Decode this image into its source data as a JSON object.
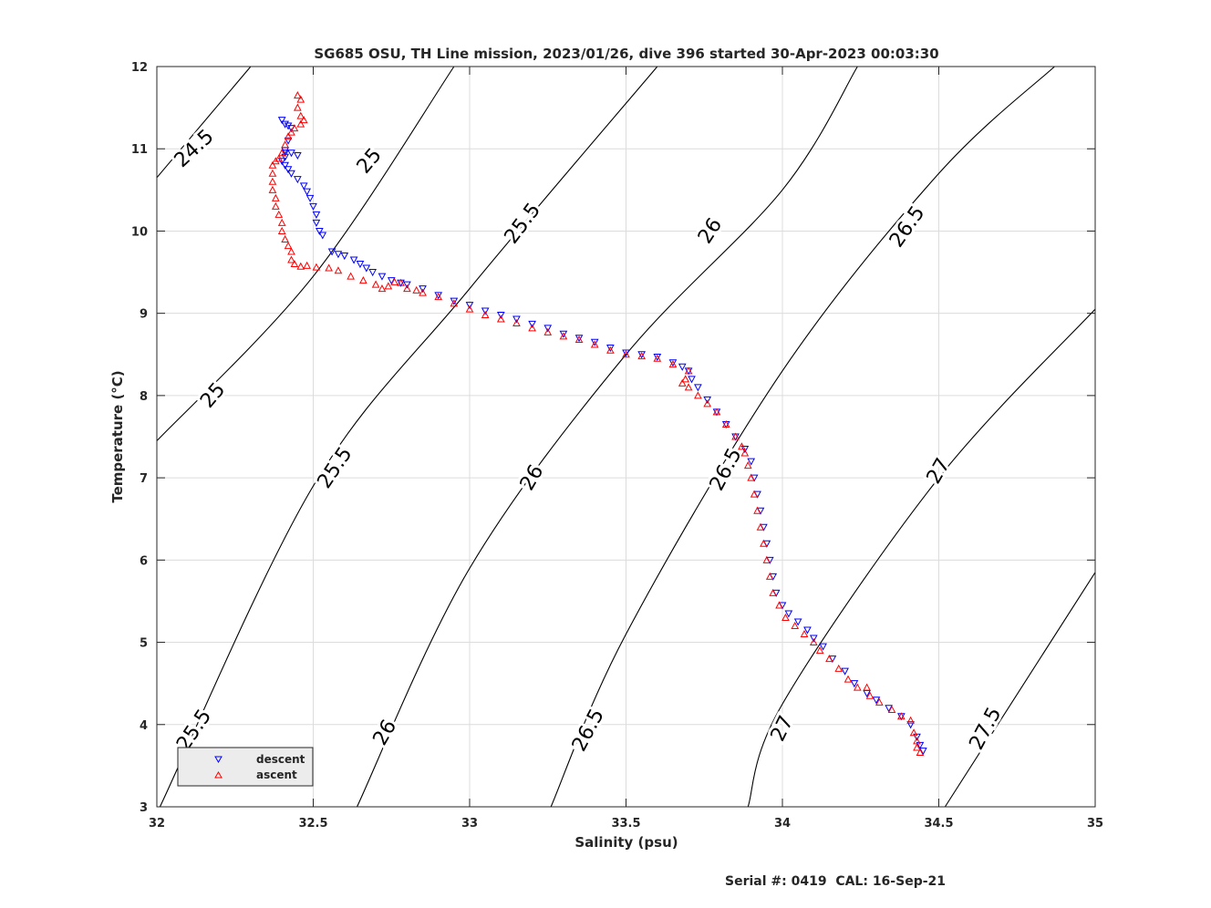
{
  "chart_data": {
    "type": "scatter",
    "title": "SG685 OSU, TH Line mission, 2023/01/26, dive 396 started 30-Apr-2023 00:03:30",
    "xlabel": "Salinity (psu)",
    "ylabel": "Temperature (°C)",
    "xlim": [
      32,
      35
    ],
    "ylim": [
      3,
      12
    ],
    "xticks": [
      32,
      32.5,
      33,
      33.5,
      34,
      34.5,
      35
    ],
    "yticks": [
      3,
      4,
      5,
      6,
      7,
      8,
      9,
      10,
      11,
      12
    ],
    "xtick_labels": [
      "32",
      "32.5",
      "33",
      "33.5",
      "34",
      "34.5",
      "35"
    ],
    "ytick_labels": [
      "3",
      "4",
      "5",
      "6",
      "7",
      "8",
      "9",
      "10",
      "11",
      "12"
    ],
    "grid": true,
    "legend_position": "bottom-left",
    "footer": "Serial #: 0419  CAL: 16-Sep-21",
    "contour_lines": [
      {
        "sigma": 24.5,
        "points": [
          [
            32.0,
            10.65
          ],
          [
            32.3,
            12.0
          ]
        ]
      },
      {
        "sigma": 25.0,
        "points": [
          [
            32.0,
            7.45
          ],
          [
            32.5,
            9.45
          ],
          [
            32.95,
            12.0
          ]
        ]
      },
      {
        "sigma": 25.5,
        "points": [
          [
            32.01,
            3.0
          ],
          [
            32.5,
            6.9
          ],
          [
            33.0,
            9.3
          ],
          [
            33.6,
            12.0
          ]
        ]
      },
      {
        "sigma": 26.0,
        "points": [
          [
            32.64,
            3.0
          ],
          [
            33.0,
            5.9
          ],
          [
            33.5,
            8.5
          ],
          [
            34.0,
            10.5
          ],
          [
            34.24,
            12.0
          ]
        ]
      },
      {
        "sigma": 26.5,
        "points": [
          [
            33.26,
            3.0
          ],
          [
            33.5,
            5.1
          ],
          [
            34.0,
            8.3
          ],
          [
            34.5,
            10.7
          ],
          [
            34.87,
            12.0
          ]
        ]
      },
      {
        "sigma": 27.0,
        "points": [
          [
            33.89,
            3.0
          ],
          [
            34.0,
            4.25
          ],
          [
            34.5,
            7.0
          ],
          [
            35.0,
            9.05
          ]
        ]
      },
      {
        "sigma": 27.5,
        "points": [
          [
            34.52,
            3.0
          ],
          [
            35.0,
            5.85
          ]
        ]
      }
    ],
    "contour_labels": [
      {
        "text": "24.5",
        "x": 32.12,
        "y": 11.0,
        "angle": -43
      },
      {
        "text": "25",
        "x": 32.18,
        "y": 8.0,
        "angle": -50
      },
      {
        "text": "25.5",
        "x": 32.12,
        "y": 3.93,
        "angle": -56
      },
      {
        "text": "25",
        "x": 32.68,
        "y": 10.85,
        "angle": -50
      },
      {
        "text": "25.5",
        "x": 32.57,
        "y": 7.12,
        "angle": -56
      },
      {
        "text": "26",
        "x": 32.73,
        "y": 3.9,
        "angle": -60
      },
      {
        "text": "25.5",
        "x": 33.17,
        "y": 10.09,
        "angle": -53
      },
      {
        "text": "26",
        "x": 33.2,
        "y": 7.0,
        "angle": -60
      },
      {
        "text": "26.5",
        "x": 33.38,
        "y": 3.93,
        "angle": -62
      },
      {
        "text": "26",
        "x": 33.77,
        "y": 10.0,
        "angle": -57
      },
      {
        "text": "26.5",
        "x": 33.82,
        "y": 7.1,
        "angle": -62
      },
      {
        "text": "27",
        "x": 34.0,
        "y": 3.95,
        "angle": -64
      },
      {
        "text": "26.5",
        "x": 34.4,
        "y": 10.05,
        "angle": -55
      },
      {
        "text": "27",
        "x": 34.5,
        "y": 7.08,
        "angle": -60
      },
      {
        "text": "27.5",
        "x": 34.65,
        "y": 3.95,
        "angle": -62
      }
    ],
    "series": [
      {
        "name": "descent",
        "color": "#0000ff",
        "marker": "triangle-down",
        "points": [
          [
            32.4,
            11.35
          ],
          [
            32.41,
            11.3
          ],
          [
            32.42,
            11.28
          ],
          [
            32.43,
            11.25
          ],
          [
            32.42,
            11.1
          ],
          [
            32.41,
            10.98
          ],
          [
            32.41,
            10.95
          ],
          [
            32.43,
            10.95
          ],
          [
            32.45,
            10.92
          ],
          [
            32.41,
            10.9
          ],
          [
            32.4,
            10.85
          ],
          [
            32.41,
            10.8
          ],
          [
            32.42,
            10.75
          ],
          [
            32.43,
            10.7
          ],
          [
            32.45,
            10.63
          ],
          [
            32.47,
            10.55
          ],
          [
            32.48,
            10.48
          ],
          [
            32.49,
            10.4
          ],
          [
            32.5,
            10.3
          ],
          [
            32.51,
            10.2
          ],
          [
            32.51,
            10.1
          ],
          [
            32.52,
            10.0
          ],
          [
            32.53,
            9.95
          ],
          [
            32.56,
            9.75
          ],
          [
            32.58,
            9.72
          ],
          [
            32.6,
            9.7
          ],
          [
            32.63,
            9.65
          ],
          [
            32.65,
            9.6
          ],
          [
            32.67,
            9.55
          ],
          [
            32.69,
            9.5
          ],
          [
            32.72,
            9.45
          ],
          [
            32.75,
            9.4
          ],
          [
            32.78,
            9.37
          ],
          [
            32.8,
            9.35
          ],
          [
            32.85,
            9.3
          ],
          [
            32.9,
            9.22
          ],
          [
            32.95,
            9.15
          ],
          [
            33.0,
            9.1
          ],
          [
            33.05,
            9.03
          ],
          [
            33.1,
            8.98
          ],
          [
            33.15,
            8.93
          ],
          [
            33.2,
            8.87
          ],
          [
            33.25,
            8.82
          ],
          [
            33.3,
            8.75
          ],
          [
            33.35,
            8.7
          ],
          [
            33.4,
            8.65
          ],
          [
            33.45,
            8.58
          ],
          [
            33.5,
            8.52
          ],
          [
            33.55,
            8.5
          ],
          [
            33.6,
            8.47
          ],
          [
            33.65,
            8.4
          ],
          [
            33.68,
            8.35
          ],
          [
            33.7,
            8.3
          ],
          [
            33.71,
            8.2
          ],
          [
            33.73,
            8.1
          ],
          [
            33.76,
            7.95
          ],
          [
            33.79,
            7.8
          ],
          [
            33.82,
            7.65
          ],
          [
            33.85,
            7.5
          ],
          [
            33.88,
            7.35
          ],
          [
            33.9,
            7.2
          ],
          [
            33.91,
            7.0
          ],
          [
            33.92,
            6.8
          ],
          [
            33.93,
            6.6
          ],
          [
            33.94,
            6.4
          ],
          [
            33.95,
            6.2
          ],
          [
            33.96,
            6.0
          ],
          [
            33.97,
            5.8
          ],
          [
            33.98,
            5.6
          ],
          [
            34.0,
            5.45
          ],
          [
            34.02,
            5.35
          ],
          [
            34.05,
            5.25
          ],
          [
            34.08,
            5.15
          ],
          [
            34.1,
            5.05
          ],
          [
            34.13,
            4.95
          ],
          [
            34.16,
            4.8
          ],
          [
            34.2,
            4.65
          ],
          [
            34.23,
            4.5
          ],
          [
            34.27,
            4.38
          ],
          [
            34.3,
            4.3
          ],
          [
            34.34,
            4.2
          ],
          [
            34.38,
            4.1
          ],
          [
            34.41,
            4.0
          ],
          [
            34.43,
            3.85
          ],
          [
            34.44,
            3.75
          ],
          [
            34.45,
            3.68
          ]
        ]
      },
      {
        "name": "ascent",
        "color": "#ff0000",
        "marker": "triangle-up",
        "points": [
          [
            32.45,
            11.65
          ],
          [
            32.46,
            11.6
          ],
          [
            32.45,
            11.5
          ],
          [
            32.46,
            11.4
          ],
          [
            32.47,
            11.35
          ],
          [
            32.46,
            11.3
          ],
          [
            32.44,
            11.25
          ],
          [
            32.43,
            11.2
          ],
          [
            32.42,
            11.15
          ],
          [
            32.41,
            11.05
          ],
          [
            32.4,
            10.95
          ],
          [
            32.39,
            10.88
          ],
          [
            32.38,
            10.85
          ],
          [
            32.37,
            10.8
          ],
          [
            32.37,
            10.7
          ],
          [
            32.37,
            10.6
          ],
          [
            32.37,
            10.5
          ],
          [
            32.38,
            10.4
          ],
          [
            32.38,
            10.3
          ],
          [
            32.39,
            10.2
          ],
          [
            32.4,
            10.1
          ],
          [
            32.4,
            10.0
          ],
          [
            32.41,
            9.9
          ],
          [
            32.42,
            9.82
          ],
          [
            32.43,
            9.75
          ],
          [
            32.43,
            9.65
          ],
          [
            32.44,
            9.6
          ],
          [
            32.46,
            9.57
          ],
          [
            32.48,
            9.58
          ],
          [
            32.51,
            9.56
          ],
          [
            32.55,
            9.55
          ],
          [
            32.58,
            9.52
          ],
          [
            32.62,
            9.45
          ],
          [
            32.66,
            9.4
          ],
          [
            32.7,
            9.35
          ],
          [
            32.72,
            9.3
          ],
          [
            32.74,
            9.33
          ],
          [
            32.76,
            9.38
          ],
          [
            32.78,
            9.37
          ],
          [
            32.8,
            9.3
          ],
          [
            32.83,
            9.28
          ],
          [
            32.85,
            9.25
          ],
          [
            32.9,
            9.2
          ],
          [
            32.95,
            9.12
          ],
          [
            33.0,
            9.05
          ],
          [
            33.05,
            8.98
          ],
          [
            33.1,
            8.93
          ],
          [
            33.15,
            8.88
          ],
          [
            33.2,
            8.82
          ],
          [
            33.25,
            8.77
          ],
          [
            33.3,
            8.72
          ],
          [
            33.35,
            8.68
          ],
          [
            33.4,
            8.62
          ],
          [
            33.45,
            8.55
          ],
          [
            33.5,
            8.5
          ],
          [
            33.55,
            8.48
          ],
          [
            33.6,
            8.45
          ],
          [
            33.65,
            8.38
          ],
          [
            33.7,
            8.3
          ],
          [
            33.69,
            8.2
          ],
          [
            33.68,
            8.15
          ],
          [
            33.7,
            8.1
          ],
          [
            33.73,
            8.0
          ],
          [
            33.76,
            7.9
          ],
          [
            33.79,
            7.8
          ],
          [
            33.82,
            7.65
          ],
          [
            33.85,
            7.5
          ],
          [
            33.87,
            7.38
          ],
          [
            33.88,
            7.3
          ],
          [
            33.89,
            7.15
          ],
          [
            33.9,
            7.0
          ],
          [
            33.91,
            6.8
          ],
          [
            33.92,
            6.6
          ],
          [
            33.93,
            6.4
          ],
          [
            33.94,
            6.2
          ],
          [
            33.95,
            6.0
          ],
          [
            33.96,
            5.8
          ],
          [
            33.97,
            5.6
          ],
          [
            33.99,
            5.45
          ],
          [
            34.01,
            5.3
          ],
          [
            34.04,
            5.2
          ],
          [
            34.07,
            5.1
          ],
          [
            34.1,
            5.0
          ],
          [
            34.12,
            4.9
          ],
          [
            34.15,
            4.8
          ],
          [
            34.18,
            4.68
          ],
          [
            34.21,
            4.55
          ],
          [
            34.24,
            4.45
          ],
          [
            34.27,
            4.45
          ],
          [
            34.28,
            4.35
          ],
          [
            34.31,
            4.27
          ],
          [
            34.35,
            4.18
          ],
          [
            34.38,
            4.1
          ],
          [
            34.41,
            4.05
          ],
          [
            34.42,
            3.9
          ],
          [
            34.43,
            3.8
          ],
          [
            34.43,
            3.72
          ],
          [
            34.44,
            3.66
          ]
        ]
      }
    ]
  }
}
